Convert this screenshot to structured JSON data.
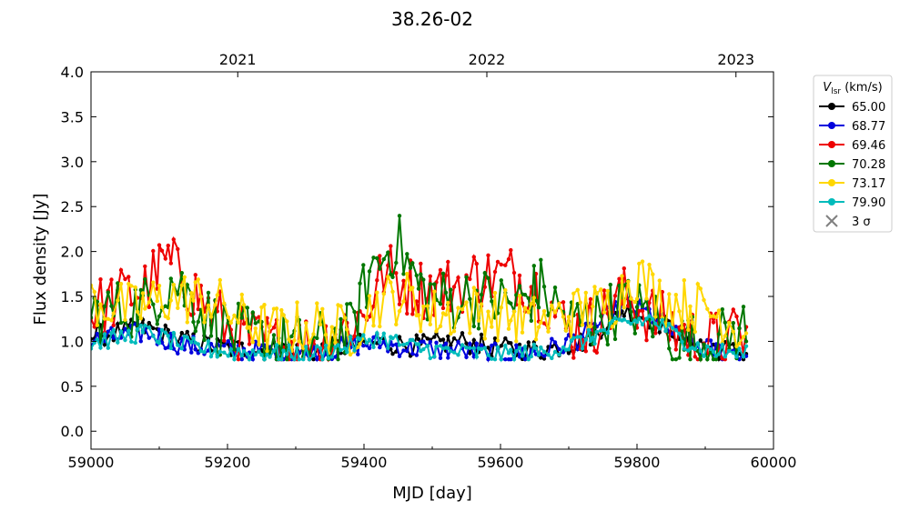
{
  "chart_data": {
    "type": "line",
    "title": "38.26-02",
    "xlabel": "MJD [day]",
    "ylabel": "Flux density [Jy]",
    "xlim": [
      59000,
      60000
    ],
    "ylim": [
      -0.2,
      4.0
    ],
    "xticks": [
      59000,
      59200,
      59400,
      59600,
      59800,
      60000
    ],
    "yticks": [
      0.0,
      0.5,
      1.0,
      1.5,
      2.0,
      2.5,
      3.0,
      3.5,
      4.0
    ],
    "top_axis": {
      "ticks": [
        {
          "label": "2021",
          "mjd": 59215
        },
        {
          "label": "2022",
          "mjd": 59580
        },
        {
          "label": "2023",
          "mjd": 59945
        }
      ]
    },
    "legend": {
      "title_symbol": "V",
      "title_subscript": "lsr",
      "title_unit": "(km/s)",
      "placement": "outside-right-top",
      "sigma_label": "3 σ"
    },
    "series": [
      {
        "name": "65.00",
        "color": "#000000",
        "base": 0.95,
        "amp": 0.12,
        "anchors": [
          [
            59000,
            1.05
          ],
          [
            59080,
            1.15
          ],
          [
            59140,
            1.0
          ],
          [
            59200,
            0.92
          ],
          [
            59260,
            0.9
          ],
          [
            59320,
            0.88
          ],
          [
            59380,
            0.95
          ],
          [
            59420,
            0.98
          ],
          [
            59480,
            0.95
          ],
          [
            59540,
            1.0
          ],
          [
            59600,
            0.92
          ],
          [
            59660,
            0.9
          ],
          [
            59720,
            1.0
          ],
          [
            59780,
            1.35
          ],
          [
            59820,
            1.25
          ],
          [
            59860,
            1.1
          ],
          [
            59900,
            0.95
          ],
          [
            59960,
            0.85
          ]
        ]
      },
      {
        "name": "68.77",
        "color": "#0000dd",
        "base": 0.93,
        "amp": 0.12,
        "anchors": [
          [
            59000,
            1.0
          ],
          [
            59080,
            1.1
          ],
          [
            59140,
            0.95
          ],
          [
            59200,
            0.9
          ],
          [
            59260,
            0.88
          ],
          [
            59320,
            0.85
          ],
          [
            59380,
            0.95
          ],
          [
            59420,
            0.98
          ],
          [
            59480,
            0.92
          ],
          [
            59540,
            0.9
          ],
          [
            59600,
            0.85
          ],
          [
            59660,
            0.88
          ],
          [
            59720,
            1.05
          ],
          [
            59780,
            1.4
          ],
          [
            59820,
            1.3
          ],
          [
            59860,
            1.05
          ],
          [
            59900,
            0.92
          ],
          [
            59960,
            0.85
          ]
        ]
      },
      {
        "name": "69.46",
        "color": "#ee0000",
        "base": 1.3,
        "amp": 0.35,
        "anchors": [
          [
            59000,
            1.35
          ],
          [
            59080,
            1.6
          ],
          [
            59110,
            1.9
          ],
          [
            59140,
            1.65
          ],
          [
            59180,
            1.3
          ],
          [
            59220,
            1.05
          ],
          [
            59280,
            0.95
          ],
          [
            59340,
            1.0
          ],
          [
            59400,
            1.3
          ],
          [
            59430,
            1.8
          ],
          [
            59470,
            1.6
          ],
          [
            59520,
            1.6
          ],
          [
            59560,
            1.7
          ],
          [
            59620,
            1.75
          ],
          [
            59660,
            1.55
          ],
          [
            59700,
            1.1
          ],
          [
            59740,
            1.2
          ],
          [
            59780,
            1.5
          ],
          [
            59820,
            1.3
          ],
          [
            59860,
            1.1
          ],
          [
            59900,
            1.0
          ],
          [
            59960,
            1.05
          ]
        ]
      },
      {
        "name": "70.28",
        "color": "#007700",
        "base": 1.25,
        "amp": 0.35,
        "anchors": [
          [
            59000,
            1.3
          ],
          [
            59080,
            1.4
          ],
          [
            59120,
            1.7
          ],
          [
            59160,
            1.35
          ],
          [
            59200,
            1.1
          ],
          [
            59260,
            1.0
          ],
          [
            59320,
            0.95
          ],
          [
            59380,
            1.1
          ],
          [
            59410,
            1.8
          ],
          [
            59450,
            2.1
          ],
          [
            59480,
            1.6
          ],
          [
            59520,
            1.45
          ],
          [
            59560,
            1.5
          ],
          [
            59620,
            1.4
          ],
          [
            59660,
            1.6
          ],
          [
            59700,
            1.2
          ],
          [
            59740,
            1.25
          ],
          [
            59780,
            1.4
          ],
          [
            59820,
            1.3
          ],
          [
            59860,
            1.0
          ],
          [
            59900,
            0.95
          ],
          [
            59960,
            1.15
          ]
        ]
      },
      {
        "name": "73.17",
        "color": "#ffd700",
        "base": 1.3,
        "amp": 0.3,
        "anchors": [
          [
            59000,
            1.45
          ],
          [
            59060,
            1.35
          ],
          [
            59120,
            1.5
          ],
          [
            59180,
            1.45
          ],
          [
            59230,
            1.2
          ],
          [
            59280,
            1.1
          ],
          [
            59320,
            1.2
          ],
          [
            59380,
            1.1
          ],
          [
            59420,
            1.45
          ],
          [
            59460,
            1.5
          ],
          [
            59500,
            1.3
          ],
          [
            59560,
            1.35
          ],
          [
            59600,
            1.3
          ],
          [
            59660,
            1.2
          ],
          [
            59700,
            1.3
          ],
          [
            59760,
            1.4
          ],
          [
            59800,
            1.75
          ],
          [
            59840,
            1.45
          ],
          [
            59880,
            1.4
          ],
          [
            59920,
            1.3
          ],
          [
            59960,
            1.1
          ]
        ]
      },
      {
        "name": "79.90",
        "color": "#00bbbb",
        "base": 0.93,
        "amp": 0.1,
        "anchors": [
          [
            59000,
            0.98
          ],
          [
            59080,
            1.1
          ],
          [
            59140,
            0.95
          ],
          [
            59200,
            0.88
          ],
          [
            59260,
            0.87
          ],
          [
            59320,
            0.85
          ],
          [
            59380,
            0.95
          ],
          [
            59420,
            1.05
          ],
          [
            59480,
            0.92
          ],
          [
            59540,
            0.88
          ],
          [
            59600,
            0.85
          ],
          [
            59660,
            0.88
          ],
          [
            59720,
            1.0
          ],
          [
            59780,
            1.2
          ],
          [
            59820,
            1.25
          ],
          [
            59860,
            1.05
          ],
          [
            59900,
            0.9
          ],
          [
            59960,
            0.85
          ]
        ]
      }
    ]
  }
}
